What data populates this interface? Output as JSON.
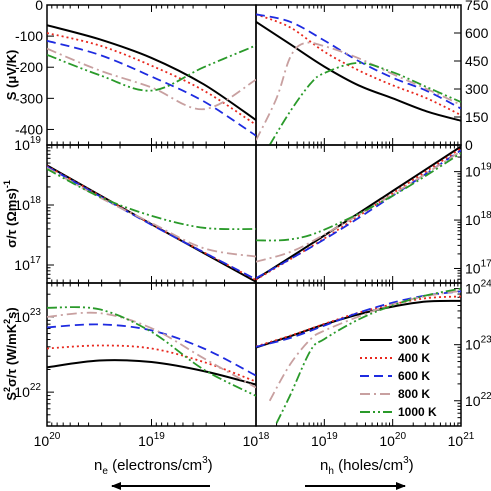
{
  "chart_data": {
    "type": "line",
    "title": "",
    "x_scale": "log",
    "y_scale_rows": [
      "linear",
      "log",
      "log"
    ],
    "grid": false,
    "legend": {
      "placement": "bottom-right panel",
      "entries": [
        {
          "name": "300 K",
          "color": "#000000",
          "dash": "solid"
        },
        {
          "name": "400 K",
          "color": "#e8281e",
          "dash": "dotted"
        },
        {
          "name": "600 K",
          "color": "#1e2be0",
          "dash": "dashed"
        },
        {
          "name": "800 K",
          "color": "#c8a0a0",
          "dash": "dash-dot"
        },
        {
          "name": "1000 K",
          "color": "#2a9a2a",
          "dash": "dash-dot-dot"
        }
      ]
    },
    "x_axes": {
      "electrons": {
        "label_main": "n",
        "label_sub": "e",
        "label_rest": " (electrons/cm",
        "label_sup": "3",
        "label_end": ")",
        "range_log10": [
          20,
          18
        ],
        "direction": "reversed",
        "ticks": [
          {
            "v": 20,
            "base": "10",
            "exp": "20"
          },
          {
            "v": 19,
            "base": "10",
            "exp": "19"
          },
          {
            "v": 18,
            "base": "10",
            "exp": "18"
          }
        ]
      },
      "holes": {
        "label_main": "n",
        "label_sub": "h",
        "label_rest": " (holes/cm",
        "label_sup": "3",
        "label_end": ")",
        "range_log10": [
          18,
          21
        ],
        "ticks": [
          {
            "v": 18,
            "base": "10",
            "exp": "18"
          },
          {
            "v": 19,
            "base": "10",
            "exp": "19"
          },
          {
            "v": 20,
            "base": "10",
            "exp": "20"
          },
          {
            "v": 21,
            "base": "10",
            "exp": "21"
          }
        ]
      }
    },
    "rows": [
      {
        "id": "seebeck",
        "ylabel": "S (μV/K)",
        "left": {
          "ylim": [
            -450,
            0
          ],
          "ticks": [
            "0",
            "-100",
            "-200",
            "-300",
            "-400"
          ],
          "tick_values": [
            0,
            -100,
            -200,
            -300,
            -400
          ]
        },
        "right": {
          "ylim": [
            0,
            750
          ],
          "ticks": [
            "750",
            "600",
            "450",
            "300",
            "150",
            "0"
          ],
          "tick_values": [
            750,
            600,
            450,
            300,
            150,
            0
          ]
        },
        "series": [
          {
            "name": "300 K",
            "left": [
              [
                20,
                -65
              ],
              [
                19.5,
                -110
              ],
              [
                19,
                -170
              ],
              [
                18.5,
                -255
              ],
              [
                18,
                -370
              ]
            ],
            "right": [
              [
                18,
                660
              ],
              [
                18.5,
                540
              ],
              [
                19,
                420
              ],
              [
                19.5,
                320
              ],
              [
                20,
                250
              ],
              [
                20.5,
                180
              ],
              [
                21,
                130
              ]
            ]
          },
          {
            "name": "400 K",
            "left": [
              [
                20,
                -90
              ],
              [
                19.5,
                -130
              ],
              [
                19,
                -195
              ],
              [
                18.5,
                -275
              ],
              [
                18,
                -385
              ]
            ],
            "right": [
              [
                18,
                700
              ],
              [
                18.5,
                630
              ],
              [
                19,
                500
              ],
              [
                19.5,
                400
              ],
              [
                20,
                320
              ],
              [
                20.5,
                250
              ],
              [
                21,
                160
              ]
            ]
          },
          {
            "name": "600 K",
            "left": [
              [
                20,
                -115
              ],
              [
                19.5,
                -160
              ],
              [
                19,
                -230
              ],
              [
                18.5,
                -310
              ],
              [
                18,
                -420
              ]
            ],
            "right": [
              [
                18,
                700
              ],
              [
                18.5,
                660
              ],
              [
                19,
                560
              ],
              [
                19.5,
                450
              ],
              [
                20,
                360
              ],
              [
                20.5,
                290
              ],
              [
                21,
                195
              ]
            ]
          },
          {
            "name": "800 K",
            "left": [
              [
                20,
                -140
              ],
              [
                19.5,
                -210
              ],
              [
                19,
                -265
              ],
              [
                18.5,
                -335
              ],
              [
                18,
                -240
              ]
            ],
            "right": [
              [
                18,
                25
              ],
              [
                18.3,
                250
              ],
              [
                18.5,
                470
              ],
              [
                18.7,
                545
              ],
              [
                19,
                530
              ],
              [
                19.5,
                465
              ],
              [
                20,
                380
              ],
              [
                20.5,
                300
              ],
              [
                21,
                215
              ]
            ]
          },
          {
            "name": "1000 K",
            "left": [
              [
                20,
                -160
              ],
              [
                19.5,
                -225
              ],
              [
                19,
                -275
              ],
              [
                18.5,
                -200
              ],
              [
                18,
                -130
              ]
            ],
            "right": [
              [
                18.2,
                0
              ],
              [
                18.5,
                180
              ],
              [
                18.8,
                330
              ],
              [
                19,
                385
              ],
              [
                19.5,
                440
              ],
              [
                20,
                390
              ],
              [
                20.5,
                310
              ],
              [
                21,
                230
              ]
            ]
          }
        ]
      },
      {
        "id": "sigma-tau",
        "ylabel_parts": {
          "main": "σ/τ (Ωms)",
          "sup": "-1"
        },
        "left": {
          "ylim_log10": [
            16.7,
            19
          ],
          "ticks": [
            {
              "base": "10",
              "exp": "19"
            },
            {
              "base": "10",
              "exp": "18"
            },
            {
              "base": "10",
              "exp": "17"
            }
          ],
          "tick_values_log10": [
            19,
            18,
            17
          ]
        },
        "right": {
          "ylim_log10": [
            16.7,
            19.55
          ],
          "ticks": [
            {
              "base": "10",
              "exp": "19"
            },
            {
              "base": "10",
              "exp": "18"
            },
            {
              "base": "10",
              "exp": "17"
            }
          ],
          "tick_values_log10": [
            19,
            18,
            17
          ]
        },
        "series": [
          {
            "name": "300 K",
            "left": [
              [
                20,
                18.66
              ],
              [
                19,
                17.68
              ],
              [
                18,
                16.72
              ]
            ],
            "right": [
              [
                18,
                16.78
              ],
              [
                19,
                17.68
              ],
              [
                20,
                18.6
              ],
              [
                21,
                19.52
              ]
            ]
          },
          {
            "name": "400 K",
            "left": [
              [
                20,
                18.65
              ],
              [
                19,
                17.68
              ],
              [
                18,
                16.75
              ]
            ],
            "right": [
              [
                18,
                16.77
              ],
              [
                19,
                17.62
              ],
              [
                20,
                18.55
              ],
              [
                21,
                19.48
              ]
            ]
          },
          {
            "name": "600 K",
            "left": [
              [
                20,
                18.64
              ],
              [
                19,
                17.67
              ],
              [
                18,
                16.76
              ]
            ],
            "right": [
              [
                18,
                16.8
              ],
              [
                19,
                17.6
              ],
              [
                20,
                18.5
              ],
              [
                21,
                19.44
              ]
            ]
          },
          {
            "name": "800 K",
            "left": [
              [
                20,
                18.62
              ],
              [
                19.5,
                18.13
              ],
              [
                19,
                17.7
              ],
              [
                18.5,
                17.28
              ],
              [
                18,
                17.14
              ]
            ],
            "right": [
              [
                18,
                17.14
              ],
              [
                18.5,
                17.34
              ],
              [
                19,
                17.7
              ],
              [
                20,
                18.53
              ],
              [
                21,
                19.42
              ]
            ]
          },
          {
            "name": "1000 K",
            "left": [
              [
                20,
                18.6
              ],
              [
                19.5,
                18.14
              ],
              [
                19,
                17.82
              ],
              [
                18.5,
                17.62
              ],
              [
                18,
                17.6
              ]
            ],
            "right": [
              [
                18,
                17.58
              ],
              [
                18.5,
                17.6
              ],
              [
                19,
                17.8
              ],
              [
                20,
                18.5
              ],
              [
                21,
                19.38
              ]
            ]
          }
        ]
      },
      {
        "id": "power-factor",
        "ylabel_parts": {
          "main1": "S",
          "sup1": "2",
          "main2": "σ/τ (W/mK",
          "sup2": "2",
          "main3": "s)"
        },
        "left": {
          "ylim_log10": [
            21.55,
            23.45
          ],
          "ticks": [
            {
              "base": "10",
              "exp": "23"
            },
            {
              "base": "10",
              "exp": "22"
            }
          ],
          "tick_values_log10": [
            23,
            22
          ]
        },
        "right": {
          "ylim_log10": [
            21.55,
            24.1
          ],
          "ticks": [
            {
              "base": "10",
              "exp": "24"
            },
            {
              "base": "10",
              "exp": "23"
            },
            {
              "base": "10",
              "exp": "22"
            }
          ],
          "tick_values_log10": [
            24,
            23,
            22
          ]
        },
        "series": [
          {
            "name": "300 K",
            "left": [
              [
                20,
                22.33
              ],
              [
                19.5,
                22.42
              ],
              [
                19,
                22.4
              ],
              [
                18.5,
                22.28
              ],
              [
                18,
                22.1
              ]
            ],
            "right": [
              [
                18,
                22.95
              ],
              [
                18.5,
                23.15
              ],
              [
                19,
                23.36
              ],
              [
                19.5,
                23.54
              ],
              [
                20,
                23.68
              ],
              [
                20.5,
                23.77
              ],
              [
                21,
                23.78
              ]
            ]
          },
          {
            "name": "400 K",
            "left": [
              [
                20,
                22.58
              ],
              [
                19.5,
                22.62
              ],
              [
                19,
                22.58
              ],
              [
                18.5,
                22.4
              ],
              [
                18,
                22.14
              ]
            ],
            "right": [
              [
                18,
                22.97
              ],
              [
                18.5,
                23.16
              ],
              [
                19,
                23.37
              ],
              [
                19.5,
                23.57
              ],
              [
                20,
                23.72
              ],
              [
                20.5,
                23.83
              ],
              [
                21,
                23.86
              ]
            ]
          },
          {
            "name": "600 K",
            "left": [
              [
                20,
                22.86
              ],
              [
                19.5,
                22.9
              ],
              [
                19,
                22.82
              ],
              [
                18.5,
                22.58
              ],
              [
                18,
                22.22
              ]
            ],
            "right": [
              [
                18,
                22.96
              ],
              [
                18.5,
                23.12
              ],
              [
                19,
                23.34
              ],
              [
                19.5,
                23.57
              ],
              [
                20,
                23.75
              ],
              [
                20.5,
                23.88
              ],
              [
                21,
                23.95
              ]
            ]
          },
          {
            "name": "800 K",
            "left": [
              [
                20,
                23.0
              ],
              [
                19.5,
                23.05
              ],
              [
                19,
                22.85
              ],
              [
                18.5,
                22.45
              ],
              [
                18,
                22.06
              ]
            ],
            "right": [
              [
                18.2,
                22.0
              ],
              [
                18.5,
                22.65
              ],
              [
                18.8,
                23.1
              ],
              [
                19,
                23.25
              ],
              [
                19.5,
                23.5
              ],
              [
                20,
                23.72
              ],
              [
                20.5,
                23.87
              ],
              [
                21,
                23.96
              ]
            ]
          },
          {
            "name": "1000 K",
            "left": [
              [
                20,
                23.12
              ],
              [
                19.5,
                23.1
              ],
              [
                19,
                22.8
              ],
              [
                18.5,
                22.3
              ],
              [
                18,
                21.95
              ]
            ],
            "right": [
              [
                18.3,
                21.6
              ],
              [
                18.5,
                22.1
              ],
              [
                18.8,
                22.9
              ],
              [
                19,
                23.1
              ],
              [
                19.5,
                23.45
              ],
              [
                20,
                23.7
              ],
              [
                20.5,
                23.88
              ],
              [
                21,
                24.0
              ]
            ]
          }
        ]
      }
    ]
  }
}
